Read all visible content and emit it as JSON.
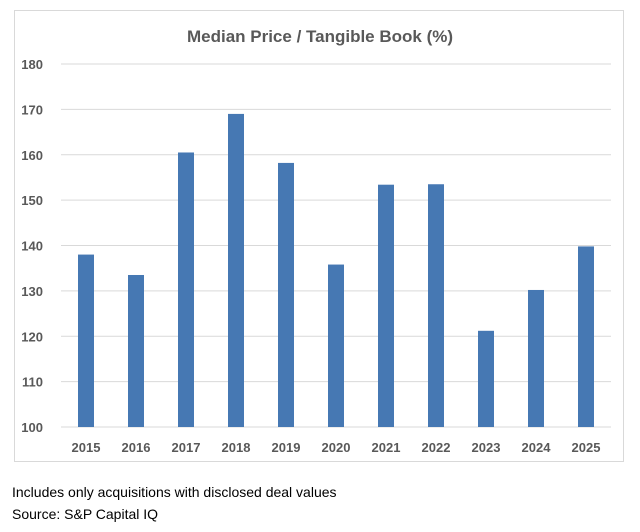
{
  "chart_data": {
    "type": "bar",
    "title": "Median Price / Tangible Book (%)",
    "categories": [
      "2015",
      "2016",
      "2017",
      "2018",
      "2019",
      "2020",
      "2021",
      "2022",
      "2023",
      "2024",
      "2025"
    ],
    "values": [
      138.0,
      133.5,
      160.5,
      169.0,
      158.2,
      135.8,
      153.4,
      153.5,
      121.2,
      130.2,
      139.8
    ],
    "xlabel": "",
    "ylabel": "",
    "ylim": [
      100,
      180
    ],
    "yticks": [
      "100",
      "110",
      "120",
      "130",
      "140",
      "150",
      "160",
      "170",
      "180"
    ],
    "grid": true,
    "legend": "none",
    "bar_color": "#4678b3",
    "grid_color": "#d9d9d9",
    "axis_color": "#595959"
  },
  "footnotes": {
    "note": "Includes only acquisitions with disclosed deal values",
    "source": "Source: S&P Capital IQ"
  }
}
